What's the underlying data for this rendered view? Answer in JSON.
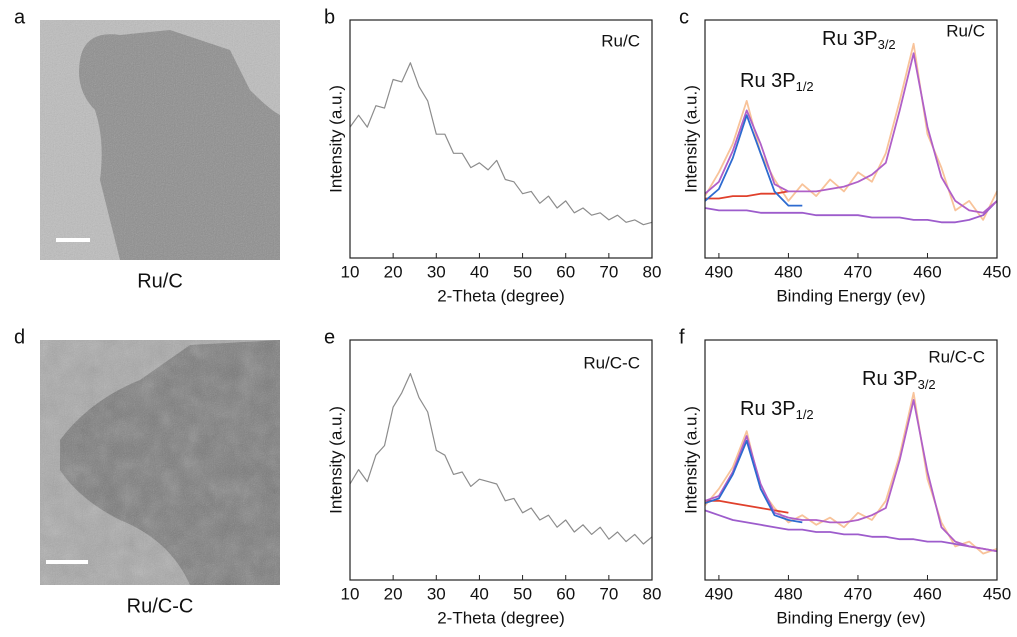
{
  "chart_data": [
    {
      "type": "image",
      "panel": "a",
      "caption": "Ru/C"
    },
    {
      "type": "line",
      "panel": "b",
      "annotation": "Ru/C",
      "xlabel": "2-Theta (degree)",
      "ylabel": "Intensity (a.u.)",
      "xlim": [
        10,
        80
      ],
      "xticks": [
        10,
        20,
        30,
        40,
        50,
        60,
        70,
        80
      ],
      "ylim": [
        0,
        100
      ],
      "x": [
        10,
        12,
        14,
        16,
        18,
        20,
        22,
        24,
        26,
        28,
        30,
        32,
        34,
        36,
        38,
        40,
        42,
        44,
        46,
        48,
        50,
        52,
        54,
        56,
        58,
        60,
        62,
        64,
        66,
        68,
        70,
        72,
        74,
        76,
        78,
        80
      ],
      "series": [
        {
          "color": "#8c8c8c",
          "values": [
            55,
            60,
            55,
            64,
            63,
            75,
            74,
            82,
            72,
            66,
            52,
            52,
            44,
            44,
            38,
            40,
            37,
            41,
            33,
            32,
            27,
            28,
            23,
            26,
            21,
            24,
            19,
            21,
            18,
            19,
            16,
            18,
            15,
            16,
            14,
            15
          ]
        }
      ]
    },
    {
      "type": "line",
      "panel": "c",
      "annotation": "Ru/C",
      "xlabel": "Binding Energy (ev)",
      "ylabel": "Intensity (a.u.)",
      "xlim": [
        492,
        450
      ],
      "xticks": [
        490,
        480,
        470,
        460,
        450
      ],
      "ylim": [
        0,
        100
      ],
      "peak_labels": [
        {
          "text": "Ru 3P",
          "sub": "1/2"
        },
        {
          "text": "Ru 3P",
          "sub": "3/2"
        }
      ],
      "x": [
        492,
        490,
        488,
        486,
        484,
        482,
        480,
        478,
        476,
        474,
        472,
        470,
        468,
        466,
        464,
        462,
        460,
        458,
        456,
        454,
        452,
        450
      ],
      "series": [
        {
          "color": "#f8c39a",
          "values": [
            26,
            36,
            48,
            66,
            44,
            33,
            24,
            31,
            26,
            33,
            28,
            36,
            32,
            44,
            66,
            90,
            52,
            38,
            20,
            24,
            16,
            28
          ]
        },
        {
          "color": "#9d5ccc",
          "values": [
            21,
            20,
            20,
            20,
            19,
            19,
            19,
            19,
            18,
            18,
            18,
            18,
            17,
            17,
            17,
            16,
            16,
            15,
            15,
            16,
            18,
            24
          ]
        },
        {
          "color": "#e0402c",
          "values": [
            25,
            25,
            26,
            26,
            27,
            27,
            28,
            null,
            null,
            null,
            null,
            null,
            null,
            null,
            null,
            null,
            null,
            null,
            null,
            null,
            null,
            null
          ]
        },
        {
          "color": "#b060c8",
          "values": [
            27,
            32,
            45,
            62,
            48,
            31,
            28,
            28,
            28,
            29,
            30,
            32,
            35,
            40,
            62,
            86,
            55,
            34,
            24,
            20,
            19,
            24
          ]
        },
        {
          "color": "#2d6bd0",
          "values": [
            24,
            29,
            42,
            60,
            44,
            28,
            22,
            22,
            null,
            null,
            null,
            null,
            null,
            null,
            null,
            null,
            null,
            null,
            null,
            null,
            null,
            null
          ]
        }
      ]
    },
    {
      "type": "image",
      "panel": "d",
      "caption": "Ru/C-C"
    },
    {
      "type": "line",
      "panel": "e",
      "annotation": "Ru/C-C",
      "xlabel": "2-Theta (degree)",
      "ylabel": "Intensity (a.u.)",
      "xlim": [
        10,
        80
      ],
      "xticks": [
        10,
        20,
        30,
        40,
        50,
        60,
        70,
        80
      ],
      "ylim": [
        0,
        100
      ],
      "x": [
        10,
        12,
        14,
        16,
        18,
        20,
        22,
        24,
        26,
        28,
        30,
        32,
        34,
        36,
        38,
        40,
        42,
        44,
        46,
        48,
        50,
        52,
        54,
        56,
        58,
        60,
        62,
        64,
        66,
        68,
        70,
        72,
        74,
        76,
        78,
        80
      ],
      "series": [
        {
          "color": "#8c8c8c",
          "values": [
            40,
            46,
            41,
            52,
            56,
            72,
            78,
            86,
            76,
            70,
            54,
            52,
            44,
            45,
            39,
            42,
            41,
            40,
            33,
            34,
            28,
            30,
            25,
            27,
            22,
            25,
            20,
            23,
            19,
            22,
            17,
            20,
            16,
            19,
            15,
            18
          ]
        }
      ]
    },
    {
      "type": "line",
      "panel": "f",
      "annotation": "Ru/C-C",
      "xlabel": "Binding Energy (ev)",
      "ylabel": "Intensity (a.u.)",
      "xlim": [
        492,
        450
      ],
      "xticks": [
        490,
        480,
        470,
        460,
        450
      ],
      "ylim": [
        0,
        100
      ],
      "peak_labels": [
        {
          "text": "Ru 3P",
          "sub": "1/2"
        },
        {
          "text": "Ru 3P",
          "sub": "3/2"
        }
      ],
      "x": [
        492,
        490,
        488,
        486,
        484,
        482,
        480,
        478,
        476,
        474,
        472,
        470,
        468,
        466,
        464,
        462,
        460,
        458,
        456,
        454,
        452,
        450
      ],
      "series": [
        {
          "color": "#f8c39a",
          "values": [
            31,
            38,
            47,
            62,
            38,
            30,
            24,
            27,
            23,
            26,
            22,
            28,
            25,
            33,
            52,
            78,
            42,
            24,
            14,
            16,
            11,
            13
          ]
        },
        {
          "color": "#9d5ccc",
          "values": [
            29,
            27,
            25,
            24,
            23,
            22,
            21,
            21,
            20,
            20,
            19,
            19,
            18,
            18,
            17,
            17,
            16,
            16,
            15,
            14,
            13,
            12
          ]
        },
        {
          "color": "#e0402c",
          "values": [
            33,
            33,
            32,
            31,
            30,
            29,
            28,
            null,
            null,
            null,
            null,
            null,
            null,
            null,
            null,
            null,
            null,
            null,
            null,
            null,
            null,
            null
          ]
        },
        {
          "color": "#b060c8",
          "values": [
            33,
            35,
            45,
            60,
            40,
            28,
            26,
            25,
            25,
            24,
            24,
            25,
            27,
            30,
            50,
            75,
            45,
            22,
            16,
            14,
            13,
            12
          ]
        },
        {
          "color": "#2d6bd0",
          "values": [
            32,
            34,
            44,
            58,
            38,
            27,
            25,
            24,
            null,
            null,
            null,
            null,
            null,
            null,
            null,
            null,
            null,
            null,
            null,
            null,
            null,
            null
          ]
        }
      ]
    }
  ]
}
